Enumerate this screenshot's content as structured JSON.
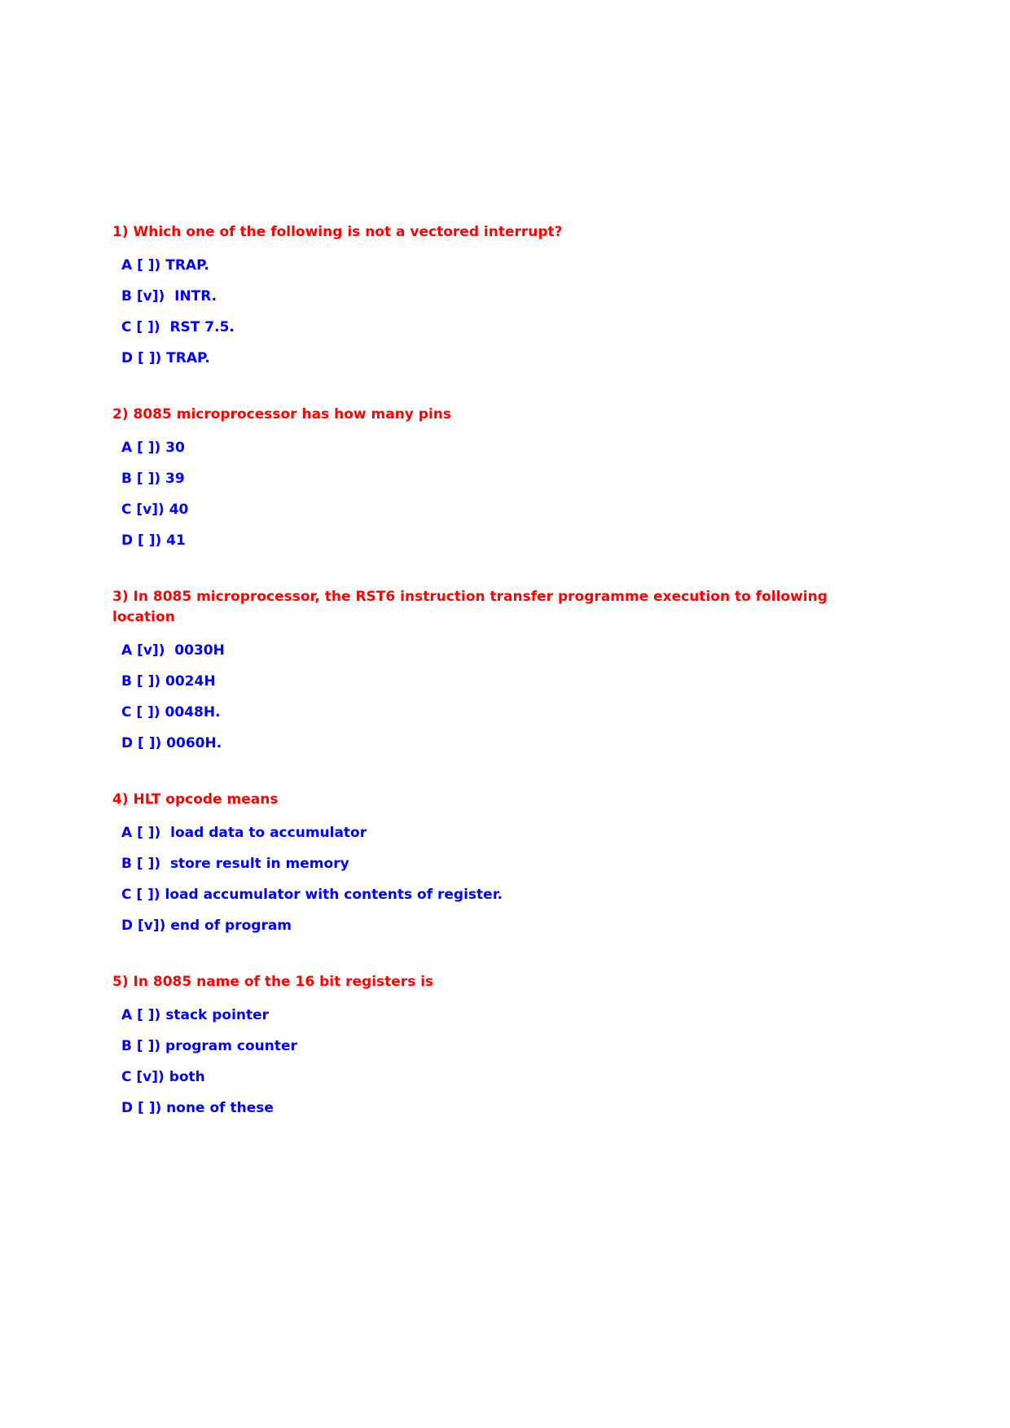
{
  "colors": {
    "page_background": "#ffffff",
    "question_text": "#ff0000",
    "answer_text": "#0000ff"
  },
  "questions": [
    {
      "title_lines": [
        "1) Which one of the following is not a vectored interrupt?"
      ],
      "options": [
        {
          "label": "A [ ]) TRAP."
        },
        {
          "label": "B [v])  INTR."
        },
        {
          "label": "C [ ])  RST 7.5."
        },
        {
          "label": "D [ ]) TRAP."
        }
      ]
    },
    {
      "title_lines": [
        "2) 8085 microprocessor has how many pins"
      ],
      "options": [
        {
          "label": "A [ ]) 30"
        },
        {
          "label": "B [ ]) 39"
        },
        {
          "label": "C [v]) 40"
        },
        {
          "label": "D [ ]) 41"
        }
      ]
    },
    {
      "title_lines": [
        "3) In 8085 microprocessor, the RST6 instruction transfer programme execution to following",
        "location"
      ],
      "options": [
        {
          "label": "A [v])  0030H"
        },
        {
          "label": "B [ ]) 0024H"
        },
        {
          "label": "C [ ]) 0048H."
        },
        {
          "label": "D [ ]) 0060H."
        }
      ]
    },
    {
      "title_lines": [
        "4) HLT opcode means"
      ],
      "options": [
        {
          "label": "A [ ])  load data to accumulator"
        },
        {
          "label": "B [ ])  store result in memory"
        },
        {
          "label": "C [ ]) load accumulator with contents of register."
        },
        {
          "label": "D [v]) end of program"
        }
      ]
    },
    {
      "title_lines": [
        "5) In 8085 name of the 16 bit registers is"
      ],
      "options": [
        {
          "label": "A [ ]) stack pointer"
        },
        {
          "label": "B [ ]) program counter"
        },
        {
          "label": "C [v]) both"
        },
        {
          "label": "D [ ]) none of these"
        }
      ]
    }
  ]
}
